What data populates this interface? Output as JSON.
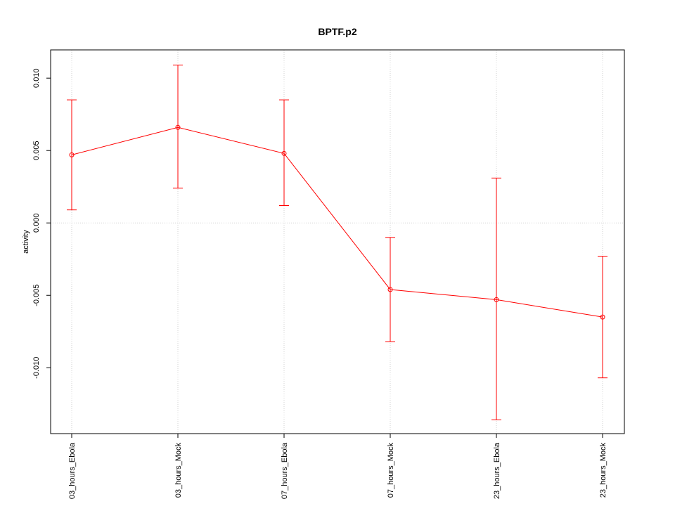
{
  "chart_data": {
    "type": "line",
    "title": "BPTF.p2",
    "xlabel": "",
    "ylabel": "activity",
    "categories": [
      "03_hours_Ebola",
      "03_hours_Mock",
      "07_hours_Ebola",
      "07_hours_Mock",
      "23_hours_Ebola",
      "23_hours_Mock"
    ],
    "series": [
      {
        "values": [
          0.0047,
          0.0066,
          0.0048,
          -0.0046,
          -0.0053,
          -0.0065
        ],
        "error_low": [
          0.0009,
          0.0024,
          0.0012,
          -0.0082,
          -0.0136,
          -0.0107
        ],
        "error_high": [
          0.0085,
          0.0109,
          0.0085,
          -0.001,
          0.0031,
          -0.0023
        ]
      }
    ],
    "yticks": [
      -0.01,
      -0.005,
      0.0,
      0.005,
      0.01
    ],
    "ytick_labels": [
      "-0.010",
      "-0.005",
      "0.000",
      "0.005",
      "0.010"
    ],
    "ylim": [
      -0.01455,
      0.01195
    ],
    "grid": true,
    "colors": {
      "series": "#ff0000",
      "grid": "#d3d3d3",
      "axis": "#000000"
    }
  }
}
